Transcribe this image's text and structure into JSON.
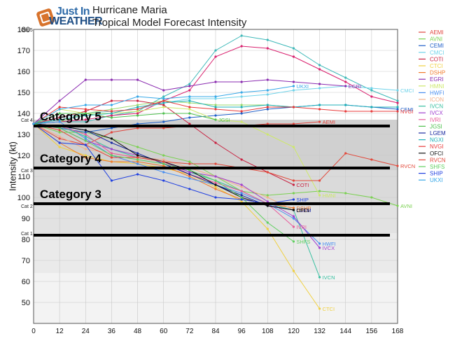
{
  "logo": {
    "line1": "Just In",
    "line2": "WEATHER",
    "icon": "logo-icon"
  },
  "header": {
    "title": "Hurricane Maria",
    "subtitle": "Tropical Model Forecast Intensity"
  },
  "chart_data": {
    "type": "line",
    "title": "Hurricane Maria",
    "subtitle": "Tropical Model Forecast Intensity",
    "xlabel": "",
    "ylabel": "Intensity (kt)",
    "x": [
      0,
      12,
      24,
      36,
      48,
      60,
      72,
      84,
      96,
      108,
      120,
      132,
      144,
      156,
      168
    ],
    "xlim": [
      0,
      168
    ],
    "ylim": [
      40,
      180
    ],
    "yticks": [
      50,
      60,
      70,
      80,
      90,
      100,
      110,
      120,
      130,
      140,
      150,
      160,
      170,
      180
    ],
    "grid": true,
    "legend_placement": "right",
    "category_bands": [
      {
        "label": "Cat 5",
        "y0": 137,
        "y1": 180,
        "color": "#ffffff"
      },
      {
        "label": "Cat 4",
        "y0": 113,
        "y1": 137,
        "color": "#d0d0d0"
      },
      {
        "label": "Cat 3",
        "y0": 96,
        "y1": 113,
        "color": "#dadada"
      },
      {
        "label": "Cat 2",
        "y0": 83,
        "y1": 96,
        "color": "#e2e2e2"
      },
      {
        "label": "Cat 1",
        "y0": 64,
        "y1": 83,
        "color": "#eaeaea"
      },
      {
        "label": "",
        "y0": 40,
        "y1": 64,
        "color": "#f3f3f3"
      }
    ],
    "category_lines": [
      {
        "label": "Category 5",
        "y": 134
      },
      {
        "label": "Category 4",
        "y": 114
      },
      {
        "label": "Category 3",
        "y": 97
      },
      {
        "label": "",
        "y": 82
      }
    ],
    "series": [
      {
        "name": "AEMI",
        "color": "#e0443d",
        "values": [
          135,
          128,
          125,
          131,
          133,
          133,
          134,
          134,
          134,
          135,
          135,
          136,
          null,
          null,
          null
        ],
        "label": "AEMI"
      },
      {
        "name": "AVNI",
        "color": "#7ad151",
        "values": [
          135,
          131,
          131,
          128,
          124,
          120,
          117,
          110,
          103,
          101,
          102,
          103,
          102,
          100,
          96
        ],
        "label": "AVNI"
      },
      {
        "name": "CEMI",
        "color": "#1f5fc8",
        "values": [
          135,
          133,
          131,
          133,
          135,
          136,
          138,
          139,
          140,
          142,
          143,
          144,
          144,
          143,
          142
        ],
        "label": "CEMI"
      },
      {
        "name": "CMCI",
        "color": "#6fd3ea",
        "values": [
          135,
          138,
          140,
          141,
          142,
          145,
          147,
          147,
          148,
          149,
          151,
          152,
          153,
          152,
          151
        ],
        "label": "CMCI"
      },
      {
        "name": "COTI",
        "color": "#c8203f",
        "values": [
          135,
          138,
          141,
          146,
          146,
          144,
          135,
          126,
          118,
          112,
          106,
          null,
          null,
          null,
          null
        ],
        "label": "COTI"
      },
      {
        "name": "CTCI",
        "color": "#f0d040",
        "values": [
          135,
          124,
          120,
          117,
          116,
          114,
          111,
          105,
          98,
          85,
          65,
          47,
          null,
          null,
          null
        ],
        "label": "CTCI"
      },
      {
        "name": "DSHP",
        "color": "#f07a2a",
        "values": [
          135,
          126,
          119,
          117,
          117,
          115,
          110,
          104,
          99,
          97,
          95,
          null,
          null,
          null,
          null
        ],
        "label": "DSHP"
      },
      {
        "name": "EGRI",
        "color": "#8a2bb0",
        "values": [
          135,
          146,
          156,
          156,
          156,
          151,
          153,
          155,
          155,
          156,
          155,
          154,
          153,
          null,
          null
        ],
        "label": "EGRI"
      },
      {
        "name": "HMNI",
        "color": "#cde86a",
        "values": [
          135,
          142,
          140,
          140,
          141,
          143,
          142,
          137,
          136,
          130,
          124,
          101,
          null,
          null,
          null
        ],
        "label": "HMNI"
      },
      {
        "name": "HWFI",
        "color": "#4a8ff0",
        "values": [
          135,
          136,
          128,
          120,
          116,
          112,
          109,
          106,
          102,
          97,
          90,
          78,
          null,
          null,
          null
        ],
        "label": "HWFI"
      },
      {
        "name": "ICON",
        "color": "#f2b08a",
        "values": [
          135,
          129,
          123,
          121,
          119,
          118,
          114,
          110,
          105,
          100,
          94,
          null,
          null,
          null,
          null
        ],
        "label": "ICON"
      },
      {
        "name": "IVCN",
        "color": "#38c0a0",
        "values": [
          135,
          134,
          129,
          123,
          119,
          117,
          112,
          108,
          103,
          97,
          94,
          62,
          null,
          null,
          null
        ],
        "label": "IVCN"
      },
      {
        "name": "IVCX",
        "color": "#a040d0",
        "values": [
          135,
          133,
          127,
          123,
          120,
          117,
          112,
          110,
          106,
          98,
          91,
          76,
          null,
          null,
          null
        ],
        "label": "IVCX"
      },
      {
        "name": "IVRI",
        "color": "#e85a9a",
        "values": [
          135,
          134,
          130,
          121,
          119,
          117,
          111,
          107,
          103,
          97,
          86,
          null,
          null,
          null,
          null
        ],
        "label": "IVRI"
      },
      {
        "name": "JGSI",
        "color": "#4fc14f",
        "values": [
          135,
          140,
          140,
          138,
          139,
          140,
          140,
          137,
          null,
          null,
          null,
          null,
          null,
          null,
          null
        ],
        "label": "JGSI"
      },
      {
        "name": "LGEM",
        "color": "#1a2aa0",
        "values": [
          135,
          134,
          132,
          126,
          121,
          116,
          111,
          106,
          101,
          96,
          94,
          null,
          null,
          null,
          null
        ],
        "label": "LGEM"
      },
      {
        "name": "NGXI",
        "color": "#1fb0b8",
        "values": [
          135,
          137,
          139,
          140,
          143,
          145,
          146,
          143,
          143,
          144,
          143,
          144,
          144,
          143,
          143
        ],
        "label": ""
      },
      {
        "name": "NVGI",
        "color": "#e83a3a",
        "values": [
          135,
          143,
          142,
          141,
          142,
          146,
          143,
          142,
          141,
          143,
          143,
          142,
          141,
          141,
          141
        ],
        "label": "NVGI"
      },
      {
        "name": "OFCI",
        "color": "#111111",
        "values": [
          135,
          134,
          132,
          128,
          120,
          117,
          113,
          106,
          100,
          96,
          94,
          null,
          null,
          null,
          null
        ],
        "label": "OFCI"
      },
      {
        "name": "RVCN",
        "color": "#e2483a",
        "values": [
          135,
          132,
          125,
          119,
          119,
          117,
          116,
          116,
          114,
          112,
          108,
          108,
          121,
          118,
          115
        ],
        "label": "RVCN"
      },
      {
        "name": "SHFS",
        "color": "#5fd05f",
        "values": [
          135,
          133,
          127,
          120,
          118,
          116,
          113,
          108,
          100,
          88,
          79,
          null,
          null,
          null,
          null
        ],
        "label": "SHFS"
      },
      {
        "name": "SHIP",
        "color": "#2040e0",
        "values": [
          135,
          126,
          125,
          108,
          111,
          108,
          104,
          100,
          99,
          97,
          99,
          null,
          null,
          null,
          null
        ],
        "label": "SHIP"
      },
      {
        "name": "UKXI",
        "color": "#36a8e8",
        "values": [
          135,
          142,
          144,
          144,
          148,
          147,
          148,
          148,
          150,
          151,
          153,
          null,
          null,
          null,
          null
        ],
        "label": "UKXI"
      }
    ],
    "extra_lines": [
      {
        "name": "aux-1",
        "color": "#3cb8b8",
        "values": [
          135,
          136,
          136,
          139,
          141,
          148,
          154,
          170,
          177,
          175,
          171,
          163,
          157,
          151,
          146
        ]
      },
      {
        "name": "aux-2",
        "color": "#d9206e",
        "values": [
          135,
          136,
          137,
          139,
          140,
          146,
          151,
          167,
          172,
          171,
          167,
          161,
          155,
          148,
          145
        ]
      },
      {
        "name": "aux-3",
        "color": "#9ad86e",
        "values": [
          135,
          136,
          140,
          142,
          144,
          146,
          145,
          144,
          144,
          144,
          143,
          null,
          null,
          null,
          null
        ]
      }
    ]
  }
}
